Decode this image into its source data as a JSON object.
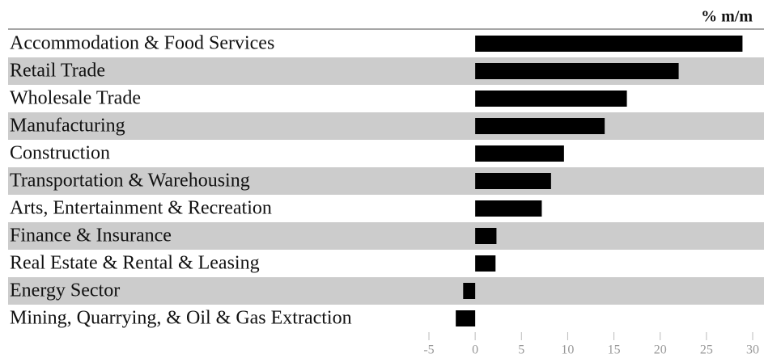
{
  "chart_data": {
    "type": "bar",
    "orientation": "horizontal",
    "unit_label": "% m/m",
    "categories": [
      "Accommodation & Food Services",
      "Retail Trade",
      "Wholesale Trade",
      "Manufacturing",
      "Construction",
      "Transportation & Warehousing",
      "Arts, Entertainment & Recreation",
      "Finance & Insurance",
      "Real Estate & Rental & Leasing",
      "Energy Sector",
      "Mining, Quarrying, & Oil & Gas Extraction"
    ],
    "values": [
      28.9,
      22.0,
      16.4,
      14.0,
      9.6,
      8.2,
      7.2,
      2.3,
      2.2,
      -1.3,
      -2.1
    ],
    "color": "#000000",
    "xlim": [
      -5,
      30
    ],
    "xticks": [
      -5,
      0,
      5,
      10,
      15,
      20,
      25,
      30
    ]
  }
}
